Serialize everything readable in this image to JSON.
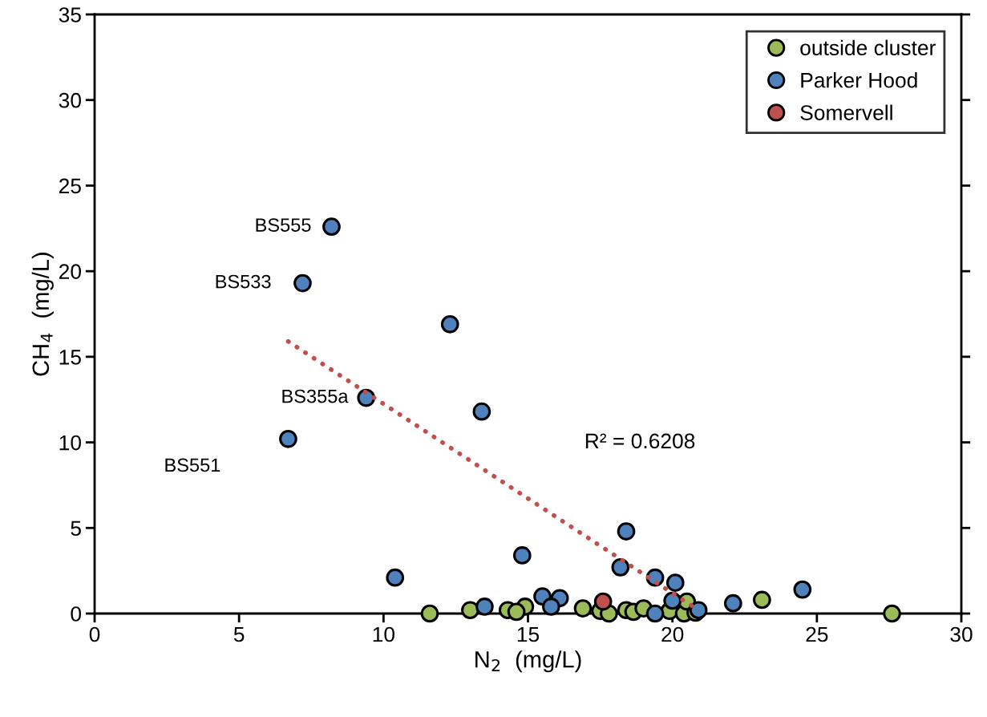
{
  "chart_data": {
    "type": "scatter",
    "xlabel": "N$_{2}$  (mg/L)",
    "ylabel": "CH$_{4}$  (mg/L)",
    "xlim": [
      0,
      30
    ],
    "xticks": [
      0,
      5,
      10,
      15,
      20,
      25,
      30
    ],
    "ylim": [
      0,
      35
    ],
    "yticks": [
      0,
      5,
      10,
      15,
      20,
      25,
      30,
      35
    ],
    "grid": false,
    "legend": "top right",
    "marker": "circle",
    "series": [
      {
        "name": "outside cluster",
        "color": "#9bbb59",
        "x": [
          11.6,
          13.0,
          14.3,
          14.9,
          14.6,
          16.9,
          17.5,
          17.8,
          18.4,
          18.65,
          19.0,
          19.9,
          20.4,
          20.5,
          20.8,
          23.1,
          27.6
        ],
        "values": [
          0,
          0.2,
          0.2,
          0.4,
          0.1,
          0.3,
          0.15,
          0,
          0.2,
          0.1,
          0.3,
          0.15,
          0,
          0.7,
          0.05,
          0.8,
          0
        ]
      },
      {
        "name": "Parker Hood",
        "color": "#4f81bd",
        "x": [
          8.2,
          7.2,
          12.3,
          9.4,
          13.4,
          6.7,
          18.4,
          14.8,
          10.4,
          18.2,
          19.4,
          20.1,
          24.5,
          15.5,
          16.1,
          13.5,
          15.8,
          20.0,
          22.1,
          20.9,
          19.4
        ],
        "values": [
          22.6,
          19.3,
          16.9,
          12.6,
          11.8,
          10.2,
          4.8,
          3.4,
          2.1,
          2.7,
          2.1,
          1.8,
          1.4,
          1.0,
          0.9,
          0.4,
          0.4,
          0.75,
          0.6,
          0.2,
          0.0
        ]
      },
      {
        "name": "Somervell",
        "color": "#c0504d",
        "x": [
          17.6
        ],
        "values": [
          0.7
        ]
      },
      {
        "type": "line",
        "color": "#c0504d",
        "line_style": "dotted",
        "marker": "none",
        "x": [
          6.7,
          20.9
        ],
        "values": [
          15.9,
          0.2
        ]
      }
    ],
    "annotations": [
      {
        "text": "BS555",
        "x": 8.2,
        "y": 22.6
      },
      {
        "text": "BS533",
        "x": 7.2,
        "y": 19.3
      },
      {
        "text": "BS355a",
        "x": 9.4,
        "y": 12.6
      },
      "BS551",
      "R² = 0.6208"
    ]
  }
}
